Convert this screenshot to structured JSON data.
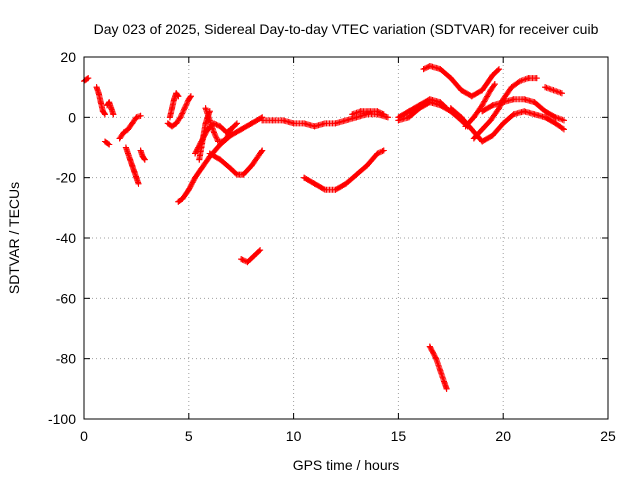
{
  "chart_data": {
    "type": "scatter",
    "title": "Day 023 of 2025, Sidereal Day-to-day VTEC variation (SDTVAR) for receiver cuib",
    "xlabel": "GPS time / hours",
    "ylabel": "SDTVAR / TECUs",
    "xlim": [
      0,
      25
    ],
    "ylim": [
      -100,
      20
    ],
    "xticks": [
      0,
      5,
      10,
      15,
      20,
      25
    ],
    "yticks": [
      -100,
      -80,
      -60,
      -40,
      -20,
      0,
      20
    ],
    "grid": true,
    "marker": "+",
    "color": "#ff0000",
    "series": [
      {
        "name": "s1",
        "points": [
          [
            0.0,
            12
          ],
          [
            0.1,
            12.5
          ],
          [
            0.2,
            13
          ]
        ]
      },
      {
        "name": "s2",
        "points": [
          [
            0.6,
            10
          ],
          [
            0.7,
            8
          ],
          [
            0.8,
            5
          ],
          [
            0.9,
            2
          ],
          [
            1.0,
            1
          ]
        ]
      },
      {
        "name": "s3",
        "points": [
          [
            1.1,
            4
          ],
          [
            1.2,
            5
          ],
          [
            1.3,
            3
          ],
          [
            1.4,
            1
          ]
        ]
      },
      {
        "name": "s4",
        "points": [
          [
            1.0,
            -8
          ],
          [
            1.1,
            -8.5
          ],
          [
            1.2,
            -9
          ]
        ]
      },
      {
        "name": "s5",
        "points": [
          [
            1.7,
            -7
          ],
          [
            1.9,
            -5
          ],
          [
            2.1,
            -4
          ],
          [
            2.3,
            -2
          ],
          [
            2.5,
            0
          ],
          [
            2.7,
            0.5
          ]
        ]
      },
      {
        "name": "s6",
        "points": [
          [
            2.0,
            -10
          ],
          [
            2.1,
            -12
          ],
          [
            2.2,
            -14
          ],
          [
            2.3,
            -16
          ],
          [
            2.4,
            -18
          ],
          [
            2.5,
            -20
          ],
          [
            2.6,
            -22
          ]
        ]
      },
      {
        "name": "s7",
        "points": [
          [
            2.7,
            -11
          ],
          [
            2.8,
            -13
          ],
          [
            2.9,
            -14
          ]
        ]
      },
      {
        "name": "s8",
        "points": [
          [
            4.0,
            -2
          ],
          [
            4.2,
            -3
          ],
          [
            4.4,
            -2
          ],
          [
            4.6,
            0
          ],
          [
            4.8,
            3
          ],
          [
            5.0,
            6
          ],
          [
            5.1,
            7
          ]
        ]
      },
      {
        "name": "s9",
        "points": [
          [
            4.1,
            0
          ],
          [
            4.2,
            3
          ],
          [
            4.3,
            6
          ],
          [
            4.4,
            8
          ],
          [
            4.5,
            7
          ]
        ]
      },
      {
        "name": "s10",
        "points": [
          [
            4.5,
            -28
          ],
          [
            4.7,
            -27
          ],
          [
            5.0,
            -24
          ],
          [
            5.3,
            -20
          ],
          [
            5.6,
            -17
          ],
          [
            6.0,
            -13
          ],
          [
            6.5,
            -9
          ],
          [
            7.0,
            -6
          ],
          [
            7.5,
            -4
          ],
          [
            8.0,
            -2
          ],
          [
            8.5,
            0
          ]
        ]
      },
      {
        "name": "s11",
        "points": [
          [
            5.3,
            -12
          ],
          [
            5.6,
            -8
          ],
          [
            5.9,
            -4
          ],
          [
            6.2,
            -2
          ],
          [
            6.5,
            -3
          ],
          [
            6.8,
            -5
          ],
          [
            7.0,
            -4
          ]
        ]
      },
      {
        "name": "s12",
        "points": [
          [
            5.5,
            -14
          ],
          [
            5.6,
            -10
          ],
          [
            5.7,
            -6
          ],
          [
            5.8,
            -2
          ],
          [
            5.9,
            0
          ],
          [
            6.0,
            2
          ]
        ]
      },
      {
        "name": "s13",
        "points": [
          [
            6.0,
            -12
          ],
          [
            6.5,
            -14
          ],
          [
            7.0,
            -17
          ],
          [
            7.3,
            -19
          ],
          [
            7.6,
            -19
          ],
          [
            8.0,
            -16
          ],
          [
            8.4,
            -12
          ],
          [
            8.5,
            -11
          ]
        ]
      },
      {
        "name": "s14",
        "points": [
          [
            5.8,
            3
          ],
          [
            6.0,
            -1
          ],
          [
            6.2,
            -5
          ],
          [
            6.4,
            -8
          ],
          [
            6.6,
            -8
          ],
          [
            6.8,
            -7
          ],
          [
            7.0,
            -4
          ],
          [
            7.3,
            -2
          ]
        ]
      },
      {
        "name": "s15",
        "points": [
          [
            7.5,
            -47
          ],
          [
            7.8,
            -48
          ],
          [
            8.1,
            -46
          ],
          [
            8.4,
            -44
          ]
        ]
      },
      {
        "name": "s16",
        "points": [
          [
            8.5,
            -1
          ],
          [
            9.0,
            -1
          ],
          [
            9.5,
            -1
          ],
          [
            10.0,
            -2
          ],
          [
            10.5,
            -2
          ],
          [
            11.0,
            -3
          ],
          [
            11.5,
            -2
          ],
          [
            12.0,
            -2
          ],
          [
            12.5,
            -1
          ],
          [
            13.0,
            0
          ],
          [
            13.5,
            1
          ],
          [
            14.0,
            1
          ],
          [
            14.5,
            0
          ]
        ]
      },
      {
        "name": "s17",
        "points": [
          [
            10.5,
            -20
          ],
          [
            11.0,
            -22
          ],
          [
            11.5,
            -24
          ],
          [
            12.0,
            -24
          ],
          [
            12.5,
            -22
          ],
          [
            13.0,
            -19
          ],
          [
            13.5,
            -16
          ],
          [
            14.0,
            -12
          ],
          [
            14.3,
            -11
          ]
        ]
      },
      {
        "name": "s18",
        "points": [
          [
            12.8,
            1
          ],
          [
            13.2,
            2
          ],
          [
            13.6,
            2
          ],
          [
            14.0,
            2
          ],
          [
            14.3,
            1
          ]
        ]
      },
      {
        "name": "s19",
        "points": [
          [
            15.0,
            -1
          ],
          [
            15.5,
            0
          ],
          [
            16.0,
            3
          ],
          [
            16.5,
            5
          ],
          [
            17.0,
            4
          ],
          [
            17.5,
            2
          ],
          [
            18.0,
            -1
          ],
          [
            18.3,
            -3
          ]
        ]
      },
      {
        "name": "s20",
        "points": [
          [
            15.0,
            0
          ],
          [
            15.5,
            2
          ],
          [
            16.0,
            4
          ],
          [
            16.5,
            6
          ],
          [
            17.0,
            5
          ],
          [
            17.3,
            3
          ]
        ]
      },
      {
        "name": "s21",
        "points": [
          [
            16.2,
            16
          ],
          [
            16.5,
            17
          ],
          [
            17.0,
            16
          ],
          [
            17.5,
            13
          ],
          [
            18.0,
            9
          ],
          [
            18.5,
            7
          ],
          [
            19.0,
            9
          ],
          [
            19.5,
            14
          ],
          [
            19.8,
            16
          ]
        ]
      },
      {
        "name": "s22",
        "points": [
          [
            16.5,
            -76
          ],
          [
            16.8,
            -80
          ],
          [
            17.0,
            -84
          ],
          [
            17.2,
            -88
          ],
          [
            17.3,
            -90
          ]
        ]
      },
      {
        "name": "s23",
        "points": [
          [
            17.5,
            3
          ],
          [
            18.0,
            0
          ],
          [
            18.5,
            -4
          ],
          [
            19.0,
            -8
          ],
          [
            19.5,
            -6
          ],
          [
            20.0,
            -2
          ],
          [
            20.5,
            1
          ],
          [
            21.0,
            2
          ],
          [
            21.5,
            1
          ],
          [
            22.0,
            0
          ],
          [
            22.5,
            -2
          ],
          [
            22.9,
            -4
          ]
        ]
      },
      {
        "name": "s24",
        "points": [
          [
            18.2,
            -3
          ],
          [
            18.6,
            0
          ],
          [
            19.0,
            4
          ],
          [
            19.4,
            9
          ],
          [
            19.6,
            11
          ]
        ]
      },
      {
        "name": "s25",
        "points": [
          [
            18.6,
            -7
          ],
          [
            19.0,
            -4
          ],
          [
            19.4,
            -1
          ],
          [
            19.8,
            3
          ],
          [
            20.0,
            6
          ],
          [
            20.4,
            10
          ],
          [
            20.8,
            12
          ],
          [
            21.2,
            13
          ],
          [
            21.6,
            13
          ]
        ]
      },
      {
        "name": "s26",
        "points": [
          [
            19.0,
            2
          ],
          [
            19.5,
            4
          ],
          [
            20.0,
            5
          ],
          [
            20.5,
            6
          ],
          [
            21.0,
            6
          ],
          [
            21.5,
            5
          ],
          [
            22.0,
            2
          ],
          [
            22.5,
            0
          ],
          [
            22.9,
            -1
          ]
        ]
      },
      {
        "name": "s27",
        "points": [
          [
            22.0,
            10
          ],
          [
            22.4,
            9
          ],
          [
            22.8,
            8
          ]
        ]
      }
    ]
  }
}
